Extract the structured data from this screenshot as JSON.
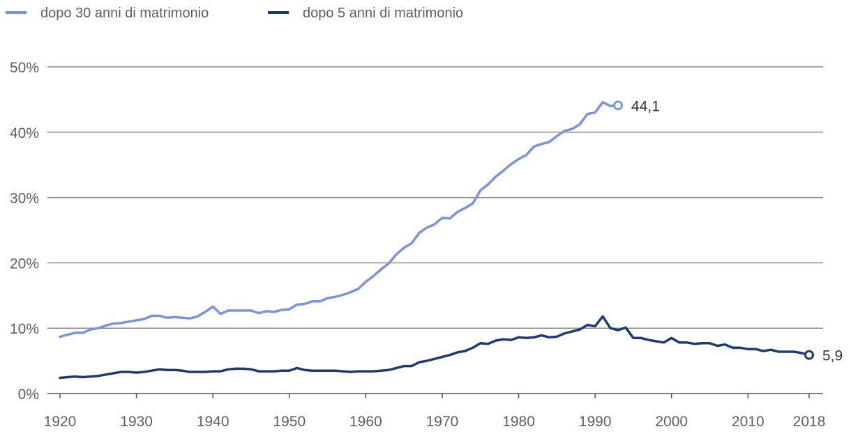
{
  "chart_data": {
    "type": "line",
    "title": "",
    "xlabel": "",
    "ylabel": "",
    "xlim": [
      1920,
      2018
    ],
    "ylim": [
      0,
      50
    ],
    "y_ticks": [
      "0%",
      "10%",
      "20%",
      "30%",
      "40%",
      "50%"
    ],
    "y_tick_values": [
      0,
      10,
      20,
      30,
      40,
      50
    ],
    "x_ticks": [
      "1920",
      "1930",
      "1940",
      "1950",
      "1960",
      "1970",
      "1980",
      "1990",
      "2000",
      "2010",
      "2018"
    ],
    "x_tick_values": [
      1920,
      1930,
      1940,
      1950,
      1960,
      1970,
      1980,
      1990,
      2000,
      2010,
      2018
    ],
    "grid": true,
    "legend_position": "top-left",
    "series": [
      {
        "name": "dopo 30 anni di matrimonio",
        "color": "#7b93d9",
        "end_label": "44,1",
        "x": [
          1920,
          1921,
          1922,
          1923,
          1924,
          1925,
          1926,
          1927,
          1928,
          1929,
          1930,
          1931,
          1932,
          1933,
          1934,
          1935,
          1936,
          1937,
          1938,
          1939,
          1940,
          1941,
          1942,
          1943,
          1944,
          1945,
          1946,
          1947,
          1948,
          1949,
          1950,
          1951,
          1952,
          1953,
          1954,
          1955,
          1956,
          1957,
          1958,
          1959,
          1960,
          1961,
          1962,
          1963,
          1964,
          1965,
          1966,
          1967,
          1968,
          1969,
          1970,
          1971,
          1972,
          1973,
          1974,
          1975,
          1976,
          1977,
          1978,
          1979,
          1980,
          1981,
          1982,
          1983,
          1984,
          1985,
          1986,
          1987,
          1988,
          1989,
          1990,
          1991,
          1992,
          1993
        ],
        "y": [
          8.7,
          9.0,
          9.3,
          9.3,
          9.8,
          10.0,
          10.4,
          10.7,
          10.8,
          11.0,
          11.2,
          11.4,
          11.9,
          11.9,
          11.6,
          11.7,
          11.6,
          11.5,
          11.8,
          12.5,
          13.3,
          12.2,
          12.7,
          12.7,
          12.7,
          12.7,
          12.3,
          12.6,
          12.5,
          12.8,
          12.9,
          13.6,
          13.7,
          14.1,
          14.1,
          14.6,
          14.8,
          15.1,
          15.5,
          16.0,
          17.1,
          18.0,
          19.0,
          19.9,
          21.3,
          22.3,
          23.0,
          24.6,
          25.4,
          25.9,
          26.9,
          26.8,
          27.8,
          28.4,
          29.1,
          31.1,
          32.0,
          33.2,
          34.1,
          35.1,
          35.9,
          36.5,
          37.8,
          38.2,
          38.5,
          39.4,
          40.2,
          40.5,
          41.2,
          42.8,
          43.0,
          44.6,
          44.0,
          44.1
        ]
      },
      {
        "name": "dopo 5 anni di matrimonio",
        "color": "#1f3a73",
        "end_label": "5,9",
        "x": [
          1920,
          1921,
          1922,
          1923,
          1924,
          1925,
          1926,
          1927,
          1928,
          1929,
          1930,
          1931,
          1932,
          1933,
          1934,
          1935,
          1936,
          1937,
          1938,
          1939,
          1940,
          1941,
          1942,
          1943,
          1944,
          1945,
          1946,
          1947,
          1948,
          1949,
          1950,
          1951,
          1952,
          1953,
          1954,
          1955,
          1956,
          1957,
          1958,
          1959,
          1960,
          1961,
          1962,
          1963,
          1964,
          1965,
          1966,
          1967,
          1968,
          1969,
          1970,
          1971,
          1972,
          1973,
          1974,
          1975,
          1976,
          1977,
          1978,
          1979,
          1980,
          1981,
          1982,
          1983,
          1984,
          1985,
          1986,
          1987,
          1988,
          1989,
          1990,
          1991,
          1992,
          1993,
          1994,
          1995,
          1996,
          1997,
          1998,
          1999,
          2000,
          2001,
          2002,
          2003,
          2004,
          2005,
          2006,
          2007,
          2008,
          2009,
          2010,
          2011,
          2012,
          2013,
          2014,
          2015,
          2016,
          2017,
          2018
        ],
        "y": [
          2.4,
          2.5,
          2.6,
          2.5,
          2.6,
          2.7,
          2.9,
          3.1,
          3.3,
          3.3,
          3.2,
          3.3,
          3.5,
          3.7,
          3.6,
          3.6,
          3.5,
          3.3,
          3.3,
          3.3,
          3.4,
          3.4,
          3.7,
          3.8,
          3.8,
          3.7,
          3.4,
          3.4,
          3.4,
          3.5,
          3.5,
          3.9,
          3.6,
          3.5,
          3.5,
          3.5,
          3.5,
          3.4,
          3.3,
          3.4,
          3.4,
          3.4,
          3.5,
          3.6,
          3.9,
          4.2,
          4.2,
          4.8,
          5.0,
          5.3,
          5.6,
          5.9,
          6.3,
          6.5,
          7.0,
          7.7,
          7.6,
          8.1,
          8.3,
          8.2,
          8.6,
          8.5,
          8.6,
          8.9,
          8.6,
          8.7,
          9.2,
          9.5,
          9.8,
          10.5,
          10.3,
          11.8,
          10.0,
          9.7,
          10.1,
          8.5,
          8.5,
          8.2,
          8.0,
          7.8,
          8.5,
          7.8,
          7.8,
          7.6,
          7.7,
          7.7,
          7.3,
          7.5,
          7.0,
          7.0,
          6.8,
          6.8,
          6.5,
          6.7,
          6.4,
          6.4,
          6.4,
          6.2,
          5.9
        ]
      }
    ]
  }
}
